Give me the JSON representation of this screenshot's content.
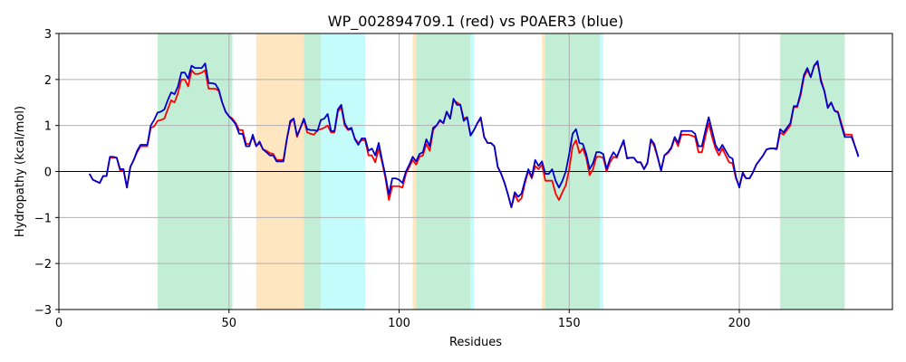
{
  "chart_data": {
    "type": "line",
    "title": "WP_002894709.1 (red) vs P0AER3 (blue)",
    "xlabel": "Residues",
    "ylabel": "Hydropathy (kcal/mol)",
    "xlim": [
      0,
      245
    ],
    "ylim": [
      -3,
      3
    ],
    "xticks": [
      0,
      50,
      100,
      150,
      200
    ],
    "yticks": [
      -3,
      -2,
      -1,
      0,
      1,
      2,
      3
    ],
    "grid": true,
    "zero_line": true,
    "colors": {
      "red": "#ff0000",
      "blue": "#0000cc",
      "green": "#c1eed5",
      "orange": "#fde6c0",
      "cyan": "#c4fcfc",
      "grid": "#b0b0b0"
    },
    "regions": [
      {
        "x0": 29,
        "x1": 51,
        "color": "green"
      },
      {
        "x0": 58,
        "x1": 72,
        "color": "orange"
      },
      {
        "x0": 72,
        "x1": 77,
        "color": "green"
      },
      {
        "x0": 77,
        "x1": 90,
        "color": "cyan"
      },
      {
        "x0": 104,
        "x1": 105,
        "color": "orange"
      },
      {
        "x0": 105,
        "x1": 121,
        "color": "green"
      },
      {
        "x0": 121,
        "x1": 122,
        "color": "cyan"
      },
      {
        "x0": 142,
        "x1": 143,
        "color": "orange"
      },
      {
        "x0": 143,
        "x1": 159,
        "color": "green"
      },
      {
        "x0": 159,
        "x1": 160,
        "color": "cyan"
      },
      {
        "x0": 212,
        "x1": 231,
        "color": "green"
      }
    ],
    "series": [
      {
        "color": "red",
        "x": [
          9,
          10,
          12,
          13,
          14,
          15,
          16,
          17,
          18,
          19,
          20,
          21,
          22,
          23,
          24,
          25,
          26,
          27,
          28,
          29,
          30,
          31,
          32,
          33,
          34,
          35,
          36,
          37,
          38,
          39,
          40,
          41,
          42,
          43,
          44,
          45,
          46,
          47,
          48,
          49,
          50,
          51,
          52,
          53,
          54,
          55,
          56,
          57,
          58,
          59,
          60,
          61,
          62,
          63,
          64,
          65,
          66,
          67,
          68,
          69,
          70,
          71,
          72,
          73,
          74,
          75,
          76,
          77,
          78,
          79,
          80,
          81,
          82,
          83,
          84,
          85,
          86,
          87,
          88,
          89,
          90,
          91,
          92,
          93,
          94,
          95,
          96,
          97,
          98,
          99,
          100,
          101,
          102,
          103,
          104,
          105,
          106,
          107,
          108,
          109,
          110,
          111,
          112,
          113,
          114,
          115,
          116,
          117,
          118,
          119,
          120,
          121,
          122,
          123,
          124,
          125,
          126,
          127,
          128,
          129,
          130,
          131,
          132,
          133,
          134,
          135,
          136,
          137,
          138,
          139,
          140,
          141,
          142,
          143,
          144,
          145,
          146,
          147,
          148,
          149,
          150,
          151,
          152,
          153,
          154,
          155,
          156,
          157,
          158,
          159,
          160,
          161,
          162,
          163,
          164,
          165,
          166,
          167,
          168,
          169,
          170,
          171,
          172,
          173,
          174,
          175,
          176,
          177,
          178,
          179,
          180,
          181,
          182,
          183,
          184,
          185,
          186,
          187,
          188,
          189,
          190,
          191,
          192,
          193,
          194,
          195,
          196,
          197,
          198,
          199,
          200,
          201,
          202,
          203,
          204,
          205,
          206,
          207,
          208,
          209,
          210,
          211,
          212,
          213,
          214,
          215,
          216,
          217,
          218,
          219,
          220,
          221,
          222,
          223,
          224,
          225,
          226,
          227,
          228,
          229,
          230,
          231,
          232,
          233,
          234,
          235
        ],
        "y": [
          -0.05,
          -0.18,
          -0.25,
          -0.1,
          -0.1,
          0.3,
          0.3,
          0.3,
          0.02,
          0.02,
          -0.35,
          0.1,
          0.25,
          0.42,
          0.55,
          0.55,
          0.55,
          0.95,
          0.98,
          1.1,
          1.12,
          1.15,
          1.35,
          1.55,
          1.5,
          1.7,
          2.0,
          2.0,
          1.85,
          2.2,
          2.12,
          2.12,
          2.15,
          2.2,
          1.8,
          1.8,
          1.8,
          1.75,
          1.5,
          1.3,
          1.2,
          1.15,
          1.05,
          0.9,
          0.9,
          0.6,
          0.6,
          0.75,
          0.55,
          0.62,
          0.48,
          0.45,
          0.4,
          0.38,
          0.25,
          0.25,
          0.25,
          0.7,
          1.05,
          1.15,
          0.75,
          0.95,
          1.12,
          0.85,
          0.82,
          0.8,
          0.9,
          0.92,
          0.95,
          1.0,
          0.85,
          0.85,
          1.3,
          1.4,
          1.0,
          0.9,
          0.92,
          0.72,
          0.62,
          0.68,
          0.68,
          0.35,
          0.35,
          0.2,
          0.5,
          0.2,
          -0.15,
          -0.62,
          -0.32,
          -0.32,
          -0.32,
          -0.35,
          -0.05,
          0.1,
          0.25,
          0.15,
          0.32,
          0.35,
          0.6,
          0.45,
          0.9,
          1.0,
          1.1,
          1.05,
          1.3,
          1.15,
          1.55,
          1.5,
          1.45,
          1.15,
          1.18,
          0.8,
          0.9,
          1.05,
          1.15,
          0.75,
          0.62,
          0.62,
          0.55,
          0.1,
          -0.05,
          -0.25,
          -0.5,
          -0.78,
          -0.5,
          -0.65,
          -0.58,
          -0.25,
          0.02,
          -0.15,
          0.12,
          0.05,
          0.15,
          -0.2,
          -0.2,
          -0.2,
          -0.48,
          -0.62,
          -0.45,
          -0.3,
          0.05,
          0.55,
          0.68,
          0.4,
          0.5,
          0.3,
          -0.08,
          0.05,
          0.32,
          0.32,
          0.3,
          0.0,
          0.2,
          0.32,
          0.3,
          0.5,
          0.65,
          0.3,
          0.3,
          0.3,
          0.2,
          0.2,
          0.05,
          0.2,
          0.68,
          0.55,
          0.3,
          0.02,
          0.35,
          0.4,
          0.5,
          0.72,
          0.55,
          0.8,
          0.8,
          0.8,
          0.78,
          0.75,
          0.42,
          0.42,
          0.75,
          1.05,
          0.75,
          0.5,
          0.35,
          0.5,
          0.35,
          0.2,
          0.18,
          -0.15,
          -0.32,
          -0.05,
          -0.15,
          -0.15,
          -0.02,
          0.15,
          0.25,
          0.35,
          0.48,
          0.5,
          0.5,
          0.48,
          0.85,
          0.8,
          0.9,
          1.0,
          1.4,
          1.4,
          1.65,
          2.05,
          2.2,
          2.05,
          2.3,
          2.35,
          2.0,
          1.75,
          1.4,
          1.5,
          1.32,
          1.3,
          1.05,
          0.8,
          0.8,
          0.8,
          0.55,
          0.35
        ]
      },
      {
        "color": "blue",
        "x": [
          9,
          10,
          12,
          13,
          14,
          15,
          16,
          17,
          18,
          19,
          20,
          21,
          22,
          23,
          24,
          25,
          26,
          27,
          28,
          29,
          30,
          31,
          32,
          33,
          34,
          35,
          36,
          37,
          38,
          39,
          40,
          41,
          42,
          43,
          44,
          45,
          46,
          47,
          48,
          49,
          50,
          51,
          52,
          53,
          54,
          55,
          56,
          57,
          58,
          59,
          60,
          61,
          62,
          63,
          64,
          65,
          66,
          67,
          68,
          69,
          70,
          71,
          72,
          73,
          74,
          75,
          76,
          77,
          78,
          79,
          80,
          81,
          82,
          83,
          84,
          85,
          86,
          87,
          88,
          89,
          90,
          91,
          92,
          93,
          94,
          95,
          96,
          97,
          98,
          99,
          100,
          101,
          102,
          103,
          104,
          105,
          106,
          107,
          108,
          109,
          110,
          111,
          112,
          113,
          114,
          115,
          116,
          117,
          118,
          119,
          120,
          121,
          122,
          123,
          124,
          125,
          126,
          127,
          128,
          129,
          130,
          131,
          132,
          133,
          134,
          135,
          136,
          137,
          138,
          139,
          140,
          141,
          142,
          143,
          144,
          145,
          146,
          147,
          148,
          149,
          150,
          151,
          152,
          153,
          154,
          155,
          156,
          157,
          158,
          159,
          160,
          161,
          162,
          163,
          164,
          165,
          166,
          167,
          168,
          169,
          170,
          171,
          172,
          173,
          174,
          175,
          176,
          177,
          178,
          179,
          180,
          181,
          182,
          183,
          184,
          185,
          186,
          187,
          188,
          189,
          190,
          191,
          192,
          193,
          194,
          195,
          196,
          197,
          198,
          199,
          200,
          201,
          202,
          203,
          204,
          205,
          206,
          207,
          208,
          209,
          210,
          211,
          212,
          213,
          214,
          215,
          216,
          217,
          218,
          219,
          220,
          221,
          222,
          223,
          224,
          225,
          226,
          227,
          228,
          229,
          230,
          231,
          232,
          233,
          234,
          235
        ],
        "y": [
          -0.05,
          -0.18,
          -0.25,
          -0.1,
          -0.1,
          0.32,
          0.32,
          0.3,
          0.05,
          0.05,
          -0.35,
          0.1,
          0.25,
          0.45,
          0.58,
          0.58,
          0.58,
          1.0,
          1.12,
          1.28,
          1.3,
          1.35,
          1.55,
          1.72,
          1.68,
          1.85,
          2.15,
          2.15,
          2.02,
          2.3,
          2.25,
          2.25,
          2.25,
          2.35,
          1.92,
          1.92,
          1.9,
          1.78,
          1.5,
          1.3,
          1.2,
          1.12,
          1.02,
          0.82,
          0.82,
          0.55,
          0.55,
          0.8,
          0.55,
          0.65,
          0.48,
          0.42,
          0.35,
          0.35,
          0.22,
          0.22,
          0.22,
          0.7,
          1.1,
          1.15,
          0.78,
          0.95,
          1.15,
          0.92,
          0.9,
          0.9,
          0.88,
          1.12,
          1.15,
          1.25,
          0.88,
          0.88,
          1.35,
          1.45,
          1.05,
          0.92,
          0.95,
          0.7,
          0.58,
          0.72,
          0.72,
          0.45,
          0.5,
          0.35,
          0.62,
          0.25,
          -0.1,
          -0.5,
          -0.15,
          -0.15,
          -0.18,
          -0.25,
          0.0,
          0.15,
          0.32,
          0.22,
          0.38,
          0.42,
          0.7,
          0.55,
          0.95,
          1.0,
          1.12,
          1.05,
          1.3,
          1.15,
          1.58,
          1.45,
          1.45,
          1.1,
          1.18,
          0.78,
          0.9,
          1.05,
          1.18,
          0.75,
          0.62,
          0.62,
          0.55,
          0.1,
          -0.05,
          -0.25,
          -0.5,
          -0.78,
          -0.45,
          -0.55,
          -0.48,
          -0.2,
          0.05,
          -0.12,
          0.25,
          0.12,
          0.22,
          -0.05,
          -0.05,
          0.05,
          -0.2,
          -0.35,
          -0.2,
          0.0,
          0.38,
          0.82,
          0.92,
          0.62,
          0.6,
          0.38,
          0.05,
          0.18,
          0.42,
          0.42,
          0.38,
          0.05,
          0.28,
          0.42,
          0.32,
          0.5,
          0.68,
          0.28,
          0.3,
          0.3,
          0.2,
          0.2,
          0.05,
          0.18,
          0.7,
          0.6,
          0.32,
          0.02,
          0.35,
          0.42,
          0.52,
          0.75,
          0.62,
          0.88,
          0.88,
          0.88,
          0.88,
          0.82,
          0.55,
          0.55,
          0.88,
          1.18,
          0.88,
          0.58,
          0.45,
          0.58,
          0.45,
          0.32,
          0.28,
          -0.12,
          -0.35,
          -0.02,
          -0.15,
          -0.15,
          -0.02,
          0.15,
          0.25,
          0.35,
          0.48,
          0.5,
          0.5,
          0.5,
          0.92,
          0.85,
          0.95,
          1.05,
          1.42,
          1.42,
          1.7,
          2.1,
          2.25,
          2.05,
          2.3,
          2.4,
          1.95,
          1.75,
          1.38,
          1.5,
          1.32,
          1.28,
          1.0,
          0.75,
          0.75,
          0.75,
          0.55,
          0.32
        ]
      }
    ]
  }
}
